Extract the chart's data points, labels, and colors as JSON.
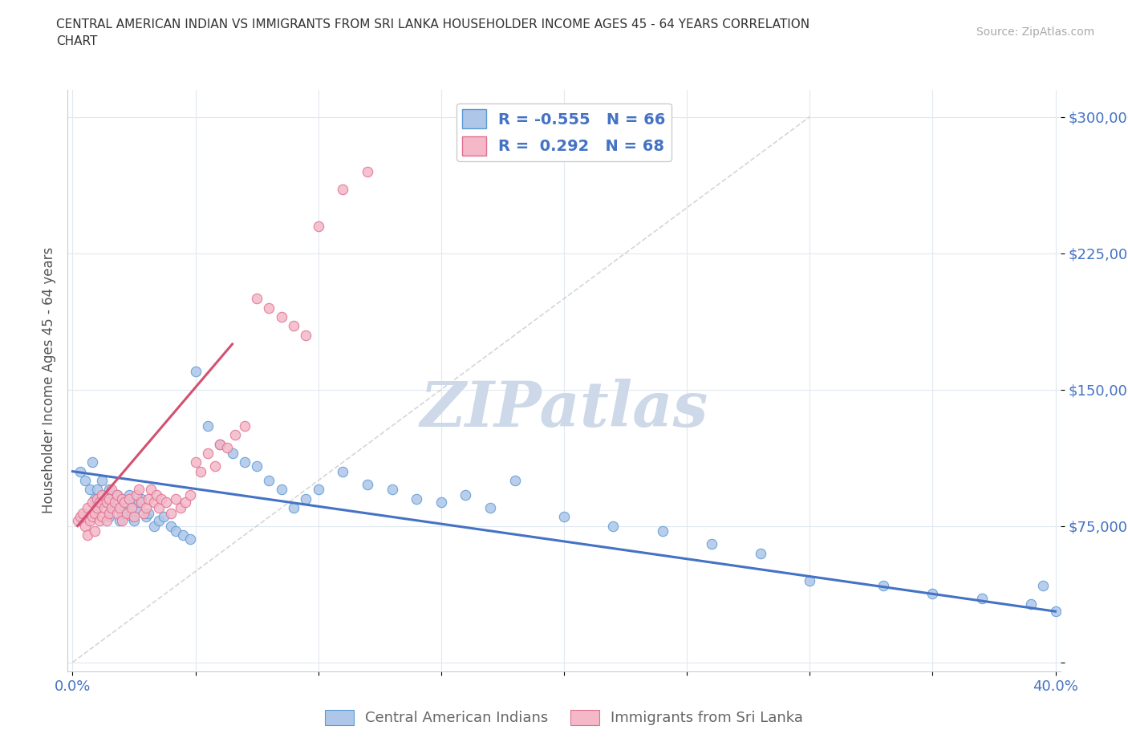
{
  "title_line1": "CENTRAL AMERICAN INDIAN VS IMMIGRANTS FROM SRI LANKA HOUSEHOLDER INCOME AGES 45 - 64 YEARS CORRELATION",
  "title_line2": "CHART",
  "source_text": "Source: ZipAtlas.com",
  "ylabel": "Householder Income Ages 45 - 64 years",
  "xlim": [
    -0.002,
    0.402
  ],
  "ylim": [
    -5000,
    315000
  ],
  "xticks": [
    0.0,
    0.05,
    0.1,
    0.15,
    0.2,
    0.25,
    0.3,
    0.35,
    0.4
  ],
  "yticks": [
    0,
    75000,
    150000,
    225000,
    300000
  ],
  "blue_color": "#aec6e8",
  "blue_edge_color": "#5b9bd5",
  "blue_line_color": "#4472c4",
  "pink_color": "#f4b8c8",
  "pink_edge_color": "#e07090",
  "pink_line_color": "#d45070",
  "legend_text_color": "#4472c4",
  "tick_color": "#4472c4",
  "R_blue": -0.555,
  "N_blue": 66,
  "R_pink": 0.292,
  "N_pink": 68,
  "watermark_color": "#cdd8e8",
  "diag_line_color": "#cccccc",
  "blue_scatter_x": [
    0.003,
    0.005,
    0.007,
    0.008,
    0.009,
    0.01,
    0.01,
    0.012,
    0.013,
    0.014,
    0.015,
    0.015,
    0.016,
    0.017,
    0.018,
    0.019,
    0.02,
    0.02,
    0.021,
    0.022,
    0.023,
    0.024,
    0.025,
    0.026,
    0.027,
    0.028,
    0.03,
    0.031,
    0.033,
    0.035,
    0.037,
    0.04,
    0.042,
    0.045,
    0.048,
    0.05,
    0.055,
    0.06,
    0.065,
    0.07,
    0.075,
    0.08,
    0.085,
    0.09,
    0.095,
    0.1,
    0.11,
    0.12,
    0.13,
    0.14,
    0.15,
    0.16,
    0.17,
    0.18,
    0.2,
    0.22,
    0.24,
    0.26,
    0.28,
    0.3,
    0.33,
    0.35,
    0.37,
    0.39,
    0.395,
    0.4
  ],
  "blue_scatter_y": [
    105000,
    100000,
    95000,
    110000,
    90000,
    95000,
    85000,
    100000,
    88000,
    92000,
    80000,
    95000,
    85000,
    88000,
    92000,
    78000,
    82000,
    90000,
    85000,
    88000,
    92000,
    80000,
    78000,
    85000,
    88000,
    90000,
    80000,
    82000,
    75000,
    78000,
    80000,
    75000,
    72000,
    70000,
    68000,
    160000,
    130000,
    120000,
    115000,
    110000,
    108000,
    100000,
    95000,
    85000,
    90000,
    95000,
    105000,
    98000,
    95000,
    90000,
    88000,
    92000,
    85000,
    100000,
    80000,
    75000,
    72000,
    65000,
    60000,
    45000,
    42000,
    38000,
    35000,
    32000,
    42000,
    28000
  ],
  "pink_scatter_x": [
    0.002,
    0.003,
    0.004,
    0.005,
    0.006,
    0.006,
    0.007,
    0.008,
    0.008,
    0.009,
    0.009,
    0.01,
    0.01,
    0.011,
    0.011,
    0.012,
    0.012,
    0.013,
    0.014,
    0.014,
    0.015,
    0.015,
    0.016,
    0.016,
    0.017,
    0.018,
    0.018,
    0.019,
    0.02,
    0.02,
    0.021,
    0.022,
    0.023,
    0.024,
    0.025,
    0.026,
    0.027,
    0.028,
    0.029,
    0.03,
    0.031,
    0.032,
    0.033,
    0.034,
    0.035,
    0.036,
    0.038,
    0.04,
    0.042,
    0.044,
    0.046,
    0.048,
    0.05,
    0.052,
    0.055,
    0.058,
    0.06,
    0.063,
    0.066,
    0.07,
    0.075,
    0.08,
    0.085,
    0.09,
    0.095,
    0.1,
    0.11,
    0.12
  ],
  "pink_scatter_y": [
    78000,
    80000,
    82000,
    75000,
    85000,
    70000,
    78000,
    80000,
    88000,
    72000,
    82000,
    85000,
    90000,
    78000,
    88000,
    80000,
    92000,
    85000,
    78000,
    88000,
    82000,
    90000,
    85000,
    95000,
    88000,
    82000,
    92000,
    85000,
    90000,
    78000,
    88000,
    82000,
    90000,
    85000,
    80000,
    92000,
    95000,
    88000,
    82000,
    85000,
    90000,
    95000,
    88000,
    92000,
    85000,
    90000,
    88000,
    82000,
    90000,
    85000,
    88000,
    92000,
    110000,
    105000,
    115000,
    108000,
    120000,
    118000,
    125000,
    130000,
    200000,
    195000,
    190000,
    185000,
    180000,
    240000,
    260000,
    270000
  ]
}
